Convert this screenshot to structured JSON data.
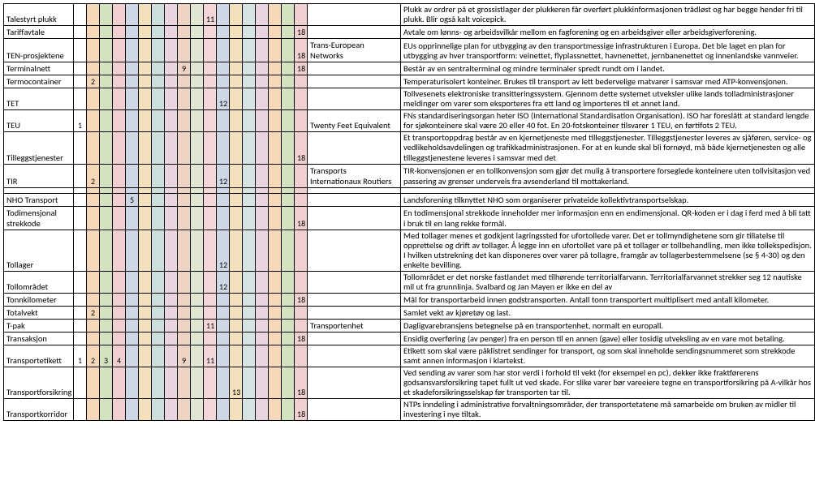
{
  "columns": {
    "numColors": [
      "c1",
      "c2",
      "c3",
      "c4",
      "c5",
      "c6",
      "c7",
      "c8",
      "c9",
      "c10",
      "c11",
      "c12",
      "c13",
      "c14",
      "c15",
      "c16",
      "c17",
      "c18"
    ]
  },
  "rows": [
    {
      "term": "Talestyrt plukk",
      "nums": {
        "11": "11"
      },
      "eng": "",
      "def": "Plukk av ordrer på et grossistlager der plukkeren får overført plukkinformasjonen trådløst og har begge hender fri til plukk. Blir også kalt voicepick."
    },
    {
      "term": "Tariffavtale",
      "nums": {
        "18": "18"
      },
      "eng": "",
      "def": "Avtale om lønns- og arbeidsvilkår mellom en fagforening og en arbeidsgiver eller arbeidsgiverforening."
    },
    {
      "term": "TEN-prosjektene",
      "nums": {
        "18": "18"
      },
      "eng": "Trans-European Networks",
      "def": "EUs opprinnelige plan for utbygging av den transportmessige infrastrukturen i Europa. Det ble laget en plan for utbygging av hver transportform: veinettet, flyplassnettet, havnenettet, jernbanenettet og innenlandske vannveier."
    },
    {
      "term": "Terminalnett",
      "nums": {
        "9": "9",
        "18": "18"
      },
      "eng": "",
      "def": "Består av en sentralterminal og mindre terminaler spredt rundt om i landet."
    },
    {
      "term": "Termocontainer",
      "nums": {
        "2": "2"
      },
      "eng": "",
      "def": "Temperaturisolert konteiner. Brukes til transport av lett bedervelige matvarer i samsvar med ATP-konvensjonen."
    },
    {
      "term": "TET",
      "nums": {
        "12": "12"
      },
      "eng": "",
      "def": "Tollvesenets elektroniske transitteringssystem. Gjennom dette systemet utveksler ulike lands tolladministrasjoner meldinger om varer som eksporteres fra ett land og importeres til et annet land."
    },
    {
      "term": "TEU",
      "nums": {
        "1": "1"
      },
      "eng": "Twenty Feet Equivalent",
      "def": "FNs standardiseringsorgan heter ISO (International Standardisation Organisation). ISO har foreslått at standard lengde for sjøkonteinere skal være 20 eller 40 fot. En 20-fotskonteiner tilsvarer 1 TEU, en førtifots 2 TEU."
    },
    {
      "term": "Tilleggstjenester",
      "nums": {
        "18": "18"
      },
      "eng": "",
      "def": "Et transportoppdrag består av en kjernetjeneste med tilleggstjenester. Tilleggstjenester leveres av sjåføren, service- og vedlikeholdsavdelingen og trafikkadministrasjonen. For at en kunde skal bli fornøyd, må både kjernetjenesten og alle tilleggstjenestene leveres i samsvar med det"
    },
    {
      "term": "TIR",
      "nums": {
        "2": "2",
        "12": "12"
      },
      "eng": "Transports Internationaux Routiers",
      "def": "TIR-konvensjonen er en tollkonvensjon som gjør det mulig å transportere forseglede konteinere uten tollvisitasjon ved passering av grenser underveis fra avsenderland til mottakerland."
    }
  ],
  "rows2": [
    {
      "term": "NHO Transport",
      "nums": {
        "5": "5"
      },
      "eng": "",
      "def": "Landsforening tilknyttet NHO som organiserer privateide kollektivtransportselskap."
    },
    {
      "term": "Todimensjonal strekkode",
      "nums": {
        "18": "18"
      },
      "eng": "",
      "def": "En todimensjonal strekkode inneholder mer informasjon enn en endimensjonal. QR-koden er i dag i ferd med å bli tatt i bruk til en lang rekke formål."
    },
    {
      "term": "Tollager",
      "nums": {
        "12": "12"
      },
      "eng": "",
      "def": "Med tollager menes et godkjent lagringssted for ufortollede varer. Det er tollmyndighetene som gir tillatelse til opprettelse og drift av tollager. Å legge inn en ufortollet vare på et tollager er tollbehandling, men ikke tollekspedisjon. I hvilken utstrekning det kan disponeres over varer på tollagre, framgår av tollagerbestemmelsene (se § 4-30) og den enkelte bevilling."
    },
    {
      "term": "Tollområdet",
      "nums": {
        "12": "12"
      },
      "eng": "",
      "def": "Tollområdet er det norske fastlandet med tilhørende territorialfarvann. Territorialfarvannet strekker seg 12 nautiske mil ut fra grunnlinja. Svalbard og Jan Mayen er ikke en del av"
    },
    {
      "term": "Tonnkilometer",
      "nums": {
        "18": "18"
      },
      "eng": "",
      "def": "Mål for transportarbeid innen godstransporten. Antall tonn transportert multiplisert med antall kilometer."
    },
    {
      "term": "Totalvekt",
      "nums": {
        "2": "2"
      },
      "eng": "",
      "def": "Samlet vekt av kjøretøy og last."
    },
    {
      "term": "T-pak",
      "nums": {
        "11": "11"
      },
      "eng": "Transportenhet",
      "def": "Dagligvarebransjens betegnelse på en transportenhet, normalt en europall."
    },
    {
      "term": "Transaksjon",
      "nums": {
        "18": "18"
      },
      "eng": "",
      "def": "Ensidig overføring (av penger) fra en person til en annen (gave) eller tosidig utveksling av en vare mot betaling."
    },
    {
      "term": "Transportetikett",
      "nums": {
        "1": "1",
        "2": "2",
        "3": "3",
        "4": "4",
        "9": "9",
        "11": "11"
      },
      "eng": "",
      "def": "Etikett som skal være påklistret sendinger for transport, og som skal inneholde sendingsnummeret som strekkode samt annen informasjon i klartekst."
    },
    {
      "term": "Transportforsikring",
      "nums": {
        "13": "13",
        "18": "18"
      },
      "eng": "",
      "def": "Ved sending av varer som har stor verdi i forhold til vekt (for eksempel en pc), dekker ikke fraktførerens godsansvarsforsikring tapet fullt ut ved skade. For slike varer bør vareeiere tegne en transportforsikring på A-vilkår hos et skadeforsikringsselskap før transporten tar til."
    },
    {
      "term": "Transportkorridor",
      "nums": {
        "18": "18"
      },
      "eng": "",
      "def": "NTPs inndeling i administrative forvaltningsområder, der transportetatene må samarbeide om bruken av midler til investering i nye tiltak."
    }
  ]
}
